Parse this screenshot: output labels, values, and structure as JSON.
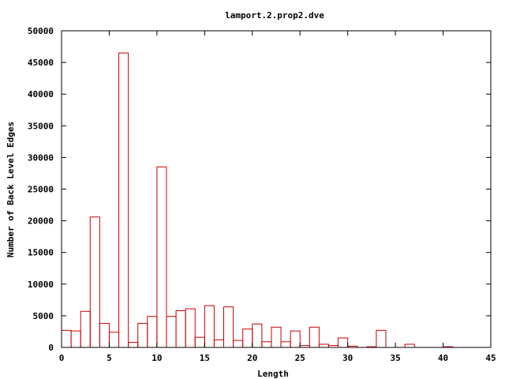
{
  "chart_data": {
    "type": "bar",
    "title": "lamport.2.prop2.dve",
    "xlabel": "Length",
    "ylabel": "Number of Back Level Edges",
    "xlim": [
      0,
      45
    ],
    "ylim": [
      0,
      50000
    ],
    "xticks": [
      0,
      5,
      10,
      15,
      20,
      25,
      30,
      35,
      40,
      45
    ],
    "yticks": [
      0,
      5000,
      10000,
      15000,
      20000,
      25000,
      30000,
      35000,
      40000,
      45000,
      50000
    ],
    "bar_color": "#cc0000",
    "grid": false,
    "bins": [
      {
        "x": 0,
        "value": 2700
      },
      {
        "x": 1,
        "value": 2600
      },
      {
        "x": 2,
        "value": 5700
      },
      {
        "x": 3,
        "value": 20600
      },
      {
        "x": 4,
        "value": 3800
      },
      {
        "x": 5,
        "value": 2400
      },
      {
        "x": 6,
        "value": 46500
      },
      {
        "x": 7,
        "value": 800
      },
      {
        "x": 8,
        "value": 3800
      },
      {
        "x": 9,
        "value": 4900
      },
      {
        "x": 10,
        "value": 28500
      },
      {
        "x": 11,
        "value": 4900
      },
      {
        "x": 12,
        "value": 5800
      },
      {
        "x": 13,
        "value": 6100
      },
      {
        "x": 14,
        "value": 1600
      },
      {
        "x": 15,
        "value": 6600
      },
      {
        "x": 16,
        "value": 1200
      },
      {
        "x": 17,
        "value": 6400
      },
      {
        "x": 18,
        "value": 1100
      },
      {
        "x": 19,
        "value": 2900
      },
      {
        "x": 20,
        "value": 3700
      },
      {
        "x": 21,
        "value": 900
      },
      {
        "x": 22,
        "value": 3200
      },
      {
        "x": 23,
        "value": 900
      },
      {
        "x": 24,
        "value": 2600
      },
      {
        "x": 25,
        "value": 300
      },
      {
        "x": 26,
        "value": 3200
      },
      {
        "x": 27,
        "value": 500
      },
      {
        "x": 28,
        "value": 300
      },
      {
        "x": 29,
        "value": 1500
      },
      {
        "x": 30,
        "value": 200
      },
      {
        "x": 32,
        "value": 100
      },
      {
        "x": 33,
        "value": 2700
      },
      {
        "x": 36,
        "value": 500
      },
      {
        "x": 40,
        "value": 100
      }
    ]
  }
}
